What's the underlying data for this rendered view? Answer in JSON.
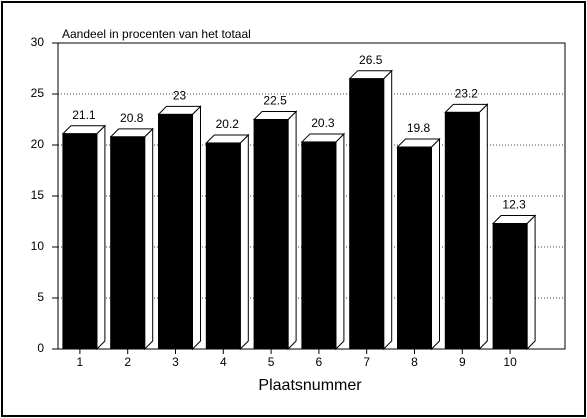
{
  "chart_data": {
    "type": "bar3d",
    "title": "Aandeel in procenten van het totaal",
    "x_label": "Plaatsnummer",
    "categories": [
      "1",
      "2",
      "3",
      "4",
      "5",
      "6",
      "7",
      "8",
      "9",
      "10"
    ],
    "values": [
      21.1,
      20.8,
      23,
      20.2,
      22.5,
      20.3,
      26.5,
      19.8,
      23.2,
      12.3
    ],
    "color": "#000000",
    "ylim": [
      0,
      30
    ],
    "yticks": [
      0,
      5,
      10,
      15,
      20,
      25,
      30
    ],
    "grid": true
  }
}
